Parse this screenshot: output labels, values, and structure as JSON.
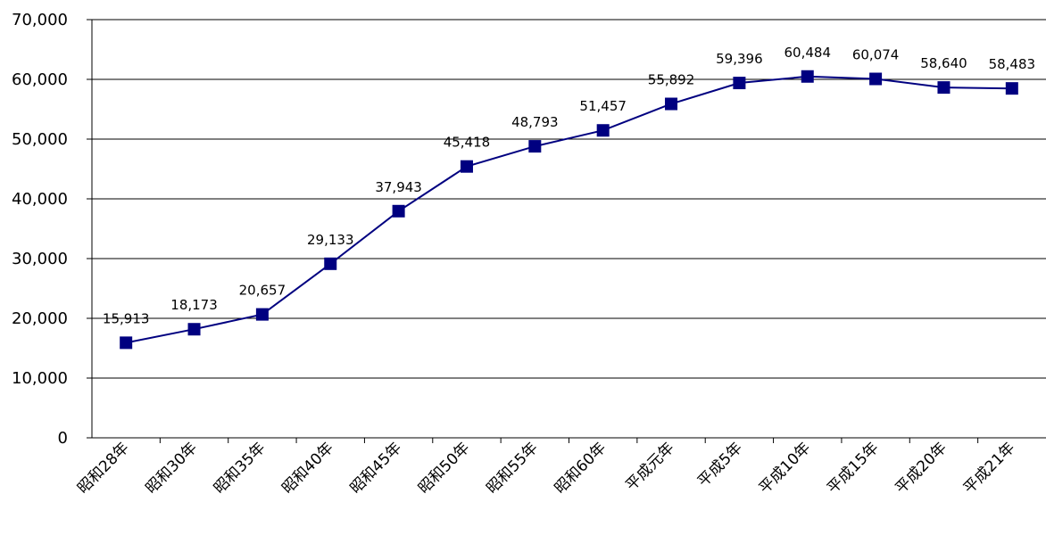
{
  "chart_data": {
    "type": "line",
    "title": "",
    "xlabel": "",
    "ylabel": "",
    "categories": [
      "昭和28年",
      "昭和30年",
      "昭和35年",
      "昭和40年",
      "昭和45年",
      "昭和50年",
      "昭和55年",
      "昭和60年",
      "平成元年",
      "平成5年",
      "平成10年",
      "平成15年",
      "平成20年",
      "平成21年"
    ],
    "values": [
      15913,
      18173,
      20657,
      29133,
      37943,
      45418,
      48793,
      51457,
      55892,
      59396,
      60484,
      60074,
      58640,
      58483
    ],
    "data_labels": [
      "15,913",
      "18,173",
      "20,657",
      "29,133",
      "37,943",
      "45,418",
      "48,793",
      "51,457",
      "55,892",
      "59,396",
      "60,484",
      "60,074",
      "58,640",
      "58,483"
    ],
    "ylim": [
      0,
      70000
    ],
    "yticks": [
      0,
      10000,
      20000,
      30000,
      40000,
      50000,
      60000,
      70000
    ],
    "ytick_labels": [
      "0",
      "10,000",
      "20,000",
      "30,000",
      "40,000",
      "50,000",
      "60,000",
      "70,000"
    ],
    "grid": true,
    "legend": "none",
    "line_color": "#000080",
    "marker": "square"
  }
}
